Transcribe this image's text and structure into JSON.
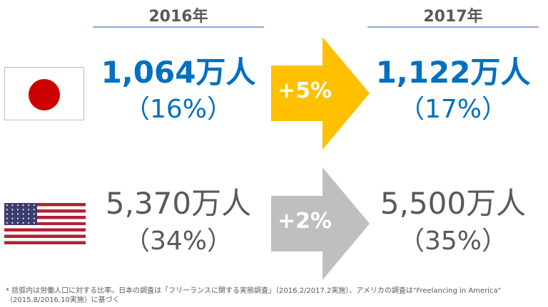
{
  "header": {
    "year_left": "2016年",
    "year_right": "2017年"
  },
  "japan": {
    "flag_icon": "japan-flag-icon",
    "value_2016": "1,064万人",
    "share_2016": "（16%）",
    "change": "+5%",
    "value_2017": "1,122万人",
    "share_2017": "（17%）",
    "value_color": "#0070c0",
    "arrow_color": "#ffc000"
  },
  "usa": {
    "flag_icon": "usa-flag-icon",
    "value_2016": "5,370万人",
    "share_2016": "（34%）",
    "change": "+2%",
    "value_2017": "5,500万人",
    "share_2017": "（35%）",
    "value_color": "#595959",
    "arrow_color": "#bfbfbf"
  },
  "footnote": {
    "line1": "* 括弧内は労働人口に対する比率。日本の調査は「フリーランスに関する実態調査」（2016.2/2017.2実施）、アメリカの調査は\"Freelancing in America\"",
    "line2": "（2015.8/2016.10実施）に基づく"
  }
}
